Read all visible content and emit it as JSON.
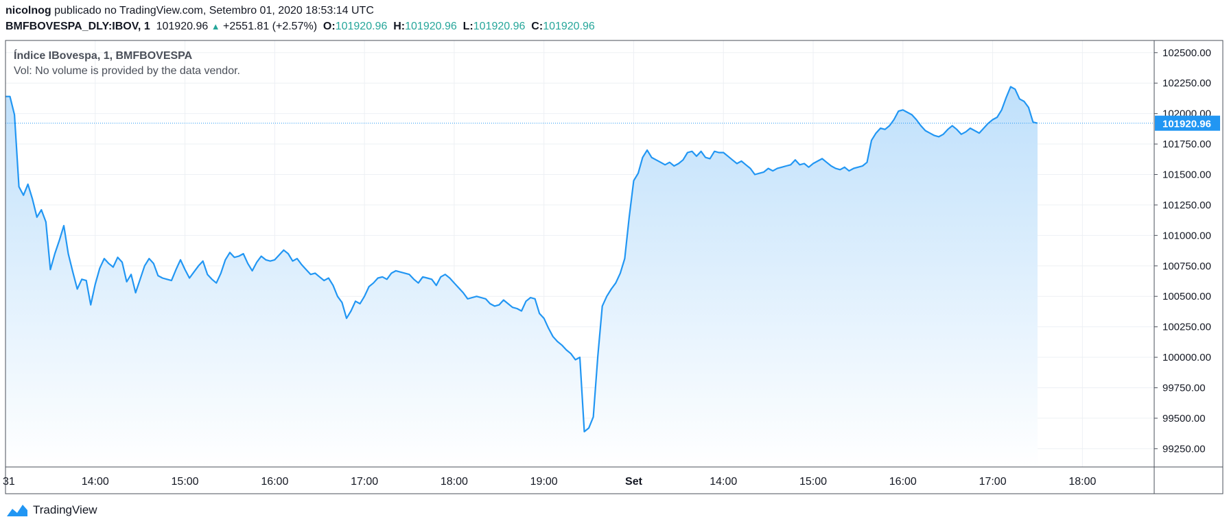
{
  "publish": {
    "user": "nicolnog",
    "text": "publicado no TradingView.com, Setembro 01, 2020 18:53:14 UTC"
  },
  "quote": {
    "symbol": "BMFBOVESPA_DLY:IBOV, 1",
    "last": "101920.96",
    "change": "+2551.81 (+2.57%)",
    "o_label": "O:",
    "o": "101920.96",
    "h_label": "H:",
    "h": "101920.96",
    "l_label": "L:",
    "l": "101920.96",
    "c_label": "C:",
    "c": "101920.96"
  },
  "legend": {
    "title": "Índice IBovespa, 1, BMFBOVESPA",
    "vol": "Vol: No volume is provided by the data vendor."
  },
  "footer": {
    "brand": "TradingView"
  },
  "colors": {
    "line": "#2196f3",
    "fill_top": "#bfe0fb",
    "fill_bottom": "#ffffff",
    "grid": "#edf0f4",
    "last_badge": "#2196f3"
  },
  "chart_data": {
    "type": "area",
    "x_ticks": [
      "31",
      "14:00",
      "15:00",
      "16:00",
      "17:00",
      "18:00",
      "19:00",
      "Set",
      "14:00",
      "15:00",
      "16:00",
      "17:00",
      "18:00"
    ],
    "x_tick_index": [
      0,
      20,
      40,
      60,
      80,
      100,
      120,
      140,
      160,
      180,
      200,
      220,
      240
    ],
    "x_range_index": [
      0,
      256
    ],
    "y_ticks": [
      "102500.00",
      "102250.00",
      "102000.00",
      "101750.00",
      "101500.00",
      "101250.00",
      "101000.00",
      "100750.00",
      "100500.00",
      "100250.00",
      "100000.00",
      "99750.00",
      "99500.00",
      "99250.00"
    ],
    "ylim": [
      99100,
      102600
    ],
    "last_value_label": "101920.96",
    "last_value": 101920.96,
    "grid": true,
    "series": [
      {
        "values": [
          102140,
          102140,
          101990,
          101400,
          101330,
          101420,
          101300,
          101150,
          101210,
          101110,
          100720,
          100850,
          100960,
          101080,
          100850,
          100700,
          100560,
          100640,
          100630,
          100430,
          100600,
          100730,
          100810,
          100770,
          100740,
          100820,
          100780,
          100620,
          100680,
          100530,
          100640,
          100750,
          100810,
          100770,
          100670,
          100650,
          100640,
          100630,
          100720,
          100800,
          100720,
          100650,
          100700,
          100750,
          100790,
          100680,
          100640,
          100610,
          100690,
          100800,
          100860,
          100820,
          100830,
          100850,
          100770,
          100710,
          100780,
          100830,
          100800,
          100790,
          100800,
          100840,
          100880,
          100850,
          100790,
          100810,
          100760,
          100720,
          100680,
          100690,
          100660,
          100630,
          100650,
          100590,
          100500,
          100450,
          100320,
          100380,
          100460,
          100440,
          100500,
          100580,
          100610,
          100650,
          100660,
          100640,
          100690,
          100710,
          100700,
          100690,
          100680,
          100640,
          100610,
          100660,
          100650,
          100640,
          100590,
          100660,
          100680,
          100650,
          100610,
          100570,
          100530,
          100480,
          100490,
          100500,
          100490,
          100480,
          100440,
          100420,
          100430,
          100470,
          100440,
          100410,
          100400,
          100380,
          100460,
          100490,
          100480,
          100360,
          100320,
          100240,
          100170,
          100130,
          100100,
          100060,
          100030,
          99980,
          100000,
          99390,
          99420,
          99510,
          100010,
          100420,
          100500,
          100560,
          100610,
          100690,
          100810,
          101150,
          101450,
          101510,
          101640,
          101700,
          101640,
          101620,
          101600,
          101580,
          101600,
          101570,
          101590,
          101620,
          101680,
          101690,
          101650,
          101690,
          101640,
          101630,
          101690,
          101680,
          101680,
          101650,
          101620,
          101590,
          101610,
          101580,
          101550,
          101500,
          101510,
          101520,
          101550,
          101530,
          101550,
          101560,
          101570,
          101580,
          101620,
          101580,
          101590,
          101560,
          101590,
          101610,
          101630,
          101600,
          101570,
          101550,
          101540,
          101560,
          101530,
          101550,
          101560,
          101570,
          101600,
          101780,
          101840,
          101880,
          101870,
          101900,
          101950,
          102020,
          102030,
          102010,
          101990,
          101950,
          101900,
          101860,
          101840,
          101820,
          101810,
          101830,
          101870,
          101900,
          101870,
          101830,
          101850,
          101880,
          101860,
          101840,
          101880,
          101920,
          101950,
          101970,
          102030,
          102130,
          102220,
          102200,
          102120,
          102100,
          102050,
          101930,
          101921
        ]
      }
    ]
  }
}
